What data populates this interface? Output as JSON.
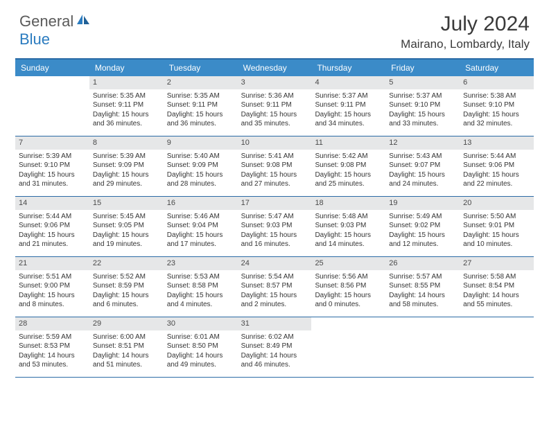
{
  "logo": {
    "part1": "General",
    "part2": "Blue"
  },
  "title": "July 2024",
  "location": "Mairano, Lombardy, Italy",
  "colors": {
    "header_bg": "#3b8bc8",
    "border": "#2a6aa5",
    "daynum_bg": "#e6e7e8",
    "logo_gray": "#5a5a5a",
    "logo_blue": "#2a7bbf"
  },
  "dow": [
    "Sunday",
    "Monday",
    "Tuesday",
    "Wednesday",
    "Thursday",
    "Friday",
    "Saturday"
  ],
  "weeks": [
    [
      {
        "n": "",
        "sr": "",
        "ss": "",
        "dl": ""
      },
      {
        "n": "1",
        "sr": "Sunrise: 5:35 AM",
        "ss": "Sunset: 9:11 PM",
        "dl": "Daylight: 15 hours and 36 minutes."
      },
      {
        "n": "2",
        "sr": "Sunrise: 5:35 AM",
        "ss": "Sunset: 9:11 PM",
        "dl": "Daylight: 15 hours and 36 minutes."
      },
      {
        "n": "3",
        "sr": "Sunrise: 5:36 AM",
        "ss": "Sunset: 9:11 PM",
        "dl": "Daylight: 15 hours and 35 minutes."
      },
      {
        "n": "4",
        "sr": "Sunrise: 5:37 AM",
        "ss": "Sunset: 9:11 PM",
        "dl": "Daylight: 15 hours and 34 minutes."
      },
      {
        "n": "5",
        "sr": "Sunrise: 5:37 AM",
        "ss": "Sunset: 9:10 PM",
        "dl": "Daylight: 15 hours and 33 minutes."
      },
      {
        "n": "6",
        "sr": "Sunrise: 5:38 AM",
        "ss": "Sunset: 9:10 PM",
        "dl": "Daylight: 15 hours and 32 minutes."
      }
    ],
    [
      {
        "n": "7",
        "sr": "Sunrise: 5:39 AM",
        "ss": "Sunset: 9:10 PM",
        "dl": "Daylight: 15 hours and 31 minutes."
      },
      {
        "n": "8",
        "sr": "Sunrise: 5:39 AM",
        "ss": "Sunset: 9:09 PM",
        "dl": "Daylight: 15 hours and 29 minutes."
      },
      {
        "n": "9",
        "sr": "Sunrise: 5:40 AM",
        "ss": "Sunset: 9:09 PM",
        "dl": "Daylight: 15 hours and 28 minutes."
      },
      {
        "n": "10",
        "sr": "Sunrise: 5:41 AM",
        "ss": "Sunset: 9:08 PM",
        "dl": "Daylight: 15 hours and 27 minutes."
      },
      {
        "n": "11",
        "sr": "Sunrise: 5:42 AM",
        "ss": "Sunset: 9:08 PM",
        "dl": "Daylight: 15 hours and 25 minutes."
      },
      {
        "n": "12",
        "sr": "Sunrise: 5:43 AM",
        "ss": "Sunset: 9:07 PM",
        "dl": "Daylight: 15 hours and 24 minutes."
      },
      {
        "n": "13",
        "sr": "Sunrise: 5:44 AM",
        "ss": "Sunset: 9:06 PM",
        "dl": "Daylight: 15 hours and 22 minutes."
      }
    ],
    [
      {
        "n": "14",
        "sr": "Sunrise: 5:44 AM",
        "ss": "Sunset: 9:06 PM",
        "dl": "Daylight: 15 hours and 21 minutes."
      },
      {
        "n": "15",
        "sr": "Sunrise: 5:45 AM",
        "ss": "Sunset: 9:05 PM",
        "dl": "Daylight: 15 hours and 19 minutes."
      },
      {
        "n": "16",
        "sr": "Sunrise: 5:46 AM",
        "ss": "Sunset: 9:04 PM",
        "dl": "Daylight: 15 hours and 17 minutes."
      },
      {
        "n": "17",
        "sr": "Sunrise: 5:47 AM",
        "ss": "Sunset: 9:03 PM",
        "dl": "Daylight: 15 hours and 16 minutes."
      },
      {
        "n": "18",
        "sr": "Sunrise: 5:48 AM",
        "ss": "Sunset: 9:03 PM",
        "dl": "Daylight: 15 hours and 14 minutes."
      },
      {
        "n": "19",
        "sr": "Sunrise: 5:49 AM",
        "ss": "Sunset: 9:02 PM",
        "dl": "Daylight: 15 hours and 12 minutes."
      },
      {
        "n": "20",
        "sr": "Sunrise: 5:50 AM",
        "ss": "Sunset: 9:01 PM",
        "dl": "Daylight: 15 hours and 10 minutes."
      }
    ],
    [
      {
        "n": "21",
        "sr": "Sunrise: 5:51 AM",
        "ss": "Sunset: 9:00 PM",
        "dl": "Daylight: 15 hours and 8 minutes."
      },
      {
        "n": "22",
        "sr": "Sunrise: 5:52 AM",
        "ss": "Sunset: 8:59 PM",
        "dl": "Daylight: 15 hours and 6 minutes."
      },
      {
        "n": "23",
        "sr": "Sunrise: 5:53 AM",
        "ss": "Sunset: 8:58 PM",
        "dl": "Daylight: 15 hours and 4 minutes."
      },
      {
        "n": "24",
        "sr": "Sunrise: 5:54 AM",
        "ss": "Sunset: 8:57 PM",
        "dl": "Daylight: 15 hours and 2 minutes."
      },
      {
        "n": "25",
        "sr": "Sunrise: 5:56 AM",
        "ss": "Sunset: 8:56 PM",
        "dl": "Daylight: 15 hours and 0 minutes."
      },
      {
        "n": "26",
        "sr": "Sunrise: 5:57 AM",
        "ss": "Sunset: 8:55 PM",
        "dl": "Daylight: 14 hours and 58 minutes."
      },
      {
        "n": "27",
        "sr": "Sunrise: 5:58 AM",
        "ss": "Sunset: 8:54 PM",
        "dl": "Daylight: 14 hours and 55 minutes."
      }
    ],
    [
      {
        "n": "28",
        "sr": "Sunrise: 5:59 AM",
        "ss": "Sunset: 8:53 PM",
        "dl": "Daylight: 14 hours and 53 minutes."
      },
      {
        "n": "29",
        "sr": "Sunrise: 6:00 AM",
        "ss": "Sunset: 8:51 PM",
        "dl": "Daylight: 14 hours and 51 minutes."
      },
      {
        "n": "30",
        "sr": "Sunrise: 6:01 AM",
        "ss": "Sunset: 8:50 PM",
        "dl": "Daylight: 14 hours and 49 minutes."
      },
      {
        "n": "31",
        "sr": "Sunrise: 6:02 AM",
        "ss": "Sunset: 8:49 PM",
        "dl": "Daylight: 14 hours and 46 minutes."
      },
      {
        "n": "",
        "sr": "",
        "ss": "",
        "dl": ""
      },
      {
        "n": "",
        "sr": "",
        "ss": "",
        "dl": ""
      },
      {
        "n": "",
        "sr": "",
        "ss": "",
        "dl": ""
      }
    ]
  ]
}
